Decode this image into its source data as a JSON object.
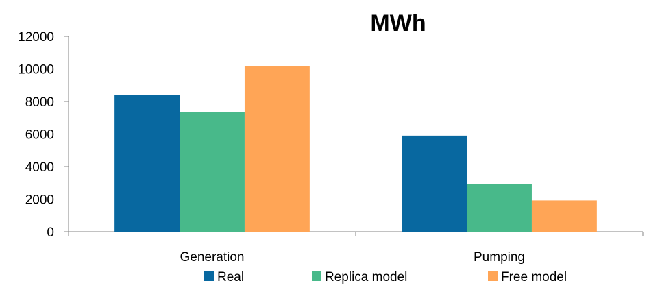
{
  "chart_data": {
    "type": "bar",
    "title": "MWh",
    "categories": [
      "Generation",
      "Pumping"
    ],
    "series": [
      {
        "name": "Real",
        "color": "#0868A0",
        "values": [
          8400,
          5900
        ]
      },
      {
        "name": "Replica model",
        "color": "#48B98A",
        "values": [
          7350,
          2930
        ]
      },
      {
        "name": "Free model",
        "color": "#FFA556",
        "values": [
          10150,
          1920
        ]
      }
    ],
    "ylim": [
      0,
      12000
    ],
    "yticks": [
      0,
      2000,
      4000,
      6000,
      8000,
      10000,
      12000
    ],
    "grid": false,
    "legend": "bottom"
  }
}
